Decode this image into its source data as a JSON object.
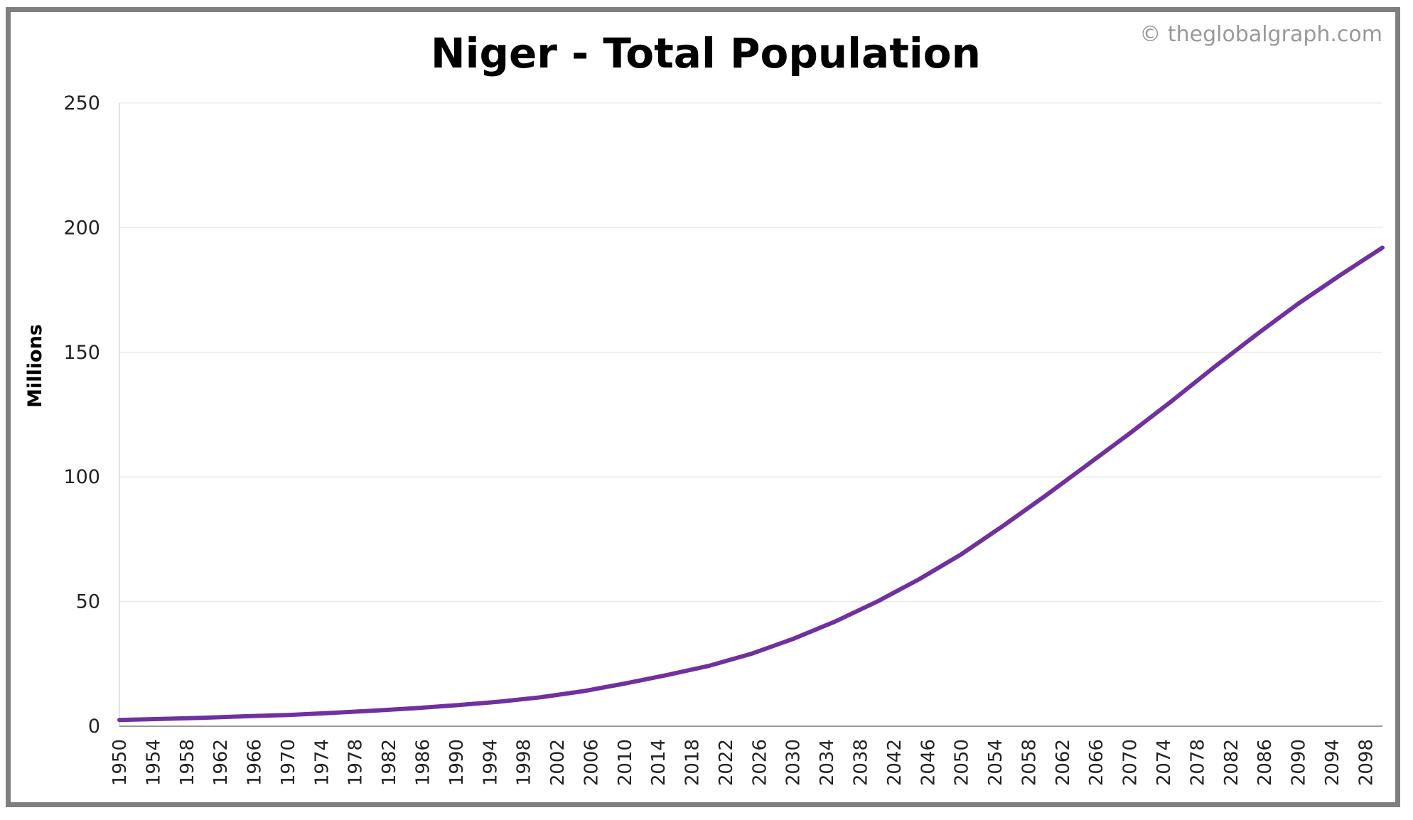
{
  "chart_data": {
    "type": "line",
    "title": "Niger - Total Population",
    "watermark": "© theglobalgraph.com",
    "xlabel": "",
    "ylabel": "Millions",
    "ylim": [
      0,
      250
    ],
    "yticks": [
      0,
      50,
      100,
      150,
      200,
      250
    ],
    "xlim": [
      1950,
      2100
    ],
    "xticks": [
      1950,
      1954,
      1958,
      1962,
      1966,
      1970,
      1974,
      1978,
      1982,
      1986,
      1990,
      1994,
      1998,
      2002,
      2006,
      2010,
      2014,
      2018,
      2022,
      2026,
      2030,
      2034,
      2038,
      2042,
      2046,
      2050,
      2054,
      2058,
      2062,
      2066,
      2070,
      2074,
      2078,
      2082,
      2086,
      2090,
      2094,
      2098
    ],
    "grid": true,
    "series": [
      {
        "color": "#7030a0",
        "x": [
          1950,
          1955,
          1960,
          1965,
          1970,
          1975,
          1980,
          1985,
          1990,
          1995,
          2000,
          2005,
          2010,
          2015,
          2020,
          2025,
          2030,
          2035,
          2040,
          2045,
          2050,
          2055,
          2060,
          2065,
          2070,
          2075,
          2080,
          2085,
          2090,
          2095,
          2100
        ],
        "y": [
          2.5,
          2.9,
          3.4,
          4.0,
          4.5,
          5.3,
          6.2,
          7.2,
          8.4,
          9.8,
          11.6,
          14.0,
          17.1,
          20.5,
          24.2,
          29.0,
          35.0,
          42.0,
          50.0,
          59.0,
          69.0,
          80.5,
          92.5,
          105.0,
          117.5,
          130.5,
          144.0,
          157.0,
          169.5,
          181.0,
          192.0
        ]
      }
    ]
  }
}
